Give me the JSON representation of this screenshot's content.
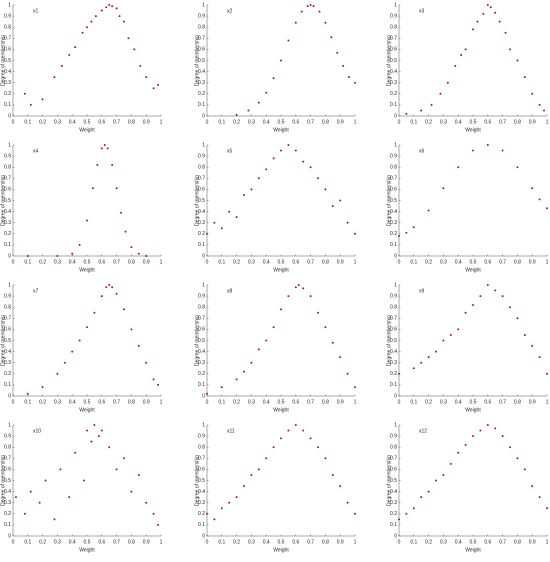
{
  "chart_data": [
    {
      "type": "scatter",
      "title": "x1",
      "xlabel": "Weight",
      "ylabel": "Degree of membership",
      "color": "#b3122e",
      "x": [
        0.08,
        0.12,
        0.2,
        0.28,
        0.33,
        0.38,
        0.42,
        0.47,
        0.5,
        0.53,
        0.56,
        0.6,
        0.63,
        0.65,
        0.67,
        0.7,
        0.72,
        0.75,
        0.78,
        0.82,
        0.86,
        0.9,
        0.95,
        0.98
      ],
      "y": [
        0.2,
        0.1,
        0.15,
        0.35,
        0.45,
        0.55,
        0.62,
        0.75,
        0.8,
        0.85,
        0.9,
        0.95,
        0.98,
        1,
        0.99,
        0.97,
        0.9,
        0.85,
        0.7,
        0.6,
        0.45,
        0.35,
        0.25,
        0.28
      ],
      "xlim": [
        0,
        1
      ],
      "ylim": [
        0,
        1
      ],
      "xticks": [
        0,
        0.1,
        0.2,
        0.3,
        0.4,
        0.5,
        0.6,
        0.7,
        0.8,
        0.9,
        1
      ],
      "yticks": [
        0,
        0.1,
        0.2,
        0.3,
        0.4,
        0.5,
        0.6,
        0.7,
        0.8,
        0.9,
        1
      ]
    },
    {
      "type": "scatter",
      "title": "x2",
      "xlabel": "Weight",
      "ylabel": "Degree of membership",
      "color": "#b3122e",
      "x": [
        0.2,
        0.28,
        0.35,
        0.4,
        0.45,
        0.5,
        0.55,
        0.6,
        0.64,
        0.68,
        0.7,
        0.72,
        0.76,
        0.8,
        0.84,
        0.88,
        0.92,
        0.96,
        1
      ],
      "y": [
        0.01,
        0.05,
        0.12,
        0.21,
        0.34,
        0.5,
        0.68,
        0.84,
        0.94,
        0.99,
        1,
        0.99,
        0.94,
        0.84,
        0.71,
        0.57,
        0.45,
        0.35,
        0.3
      ],
      "xlim": [
        0,
        1
      ],
      "ylim": [
        0,
        1
      ],
      "xticks": [
        0,
        0.1,
        0.2,
        0.3,
        0.4,
        0.5,
        0.6,
        0.7,
        0.8,
        0.9,
        1
      ],
      "yticks": [
        0,
        0.1,
        0.2,
        0.3,
        0.4,
        0.5,
        0.6,
        0.7,
        0.8,
        0.9,
        1
      ]
    },
    {
      "type": "scatter",
      "title": "x3",
      "xlabel": "Weight",
      "ylabel": "Degree of membership",
      "color": "#b3122e",
      "x": [
        0.05,
        0.15,
        0.22,
        0.28,
        0.33,
        0.38,
        0.42,
        0.45,
        0.5,
        0.53,
        0.57,
        0.6,
        0.62,
        0.65,
        0.68,
        0.72,
        0.75,
        0.8,
        0.85,
        0.9,
        0.95,
        0.98
      ],
      "y": [
        0.02,
        0.05,
        0.1,
        0.2,
        0.3,
        0.45,
        0.55,
        0.6,
        0.78,
        0.85,
        0.92,
        1,
        0.98,
        0.93,
        0.85,
        0.75,
        0.6,
        0.5,
        0.35,
        0.2,
        0.1,
        0.05
      ],
      "xlim": [
        0,
        1
      ],
      "ylim": [
        0,
        1
      ],
      "xticks": [
        0,
        0.1,
        0.2,
        0.3,
        0.4,
        0.5,
        0.6,
        0.7,
        0.8,
        0.9,
        1
      ],
      "yticks": [
        0,
        0.1,
        0.2,
        0.3,
        0.4,
        0.5,
        0.6,
        0.7,
        0.8,
        0.9,
        1
      ]
    },
    {
      "type": "scatter",
      "title": "x4",
      "xlabel": "Weight",
      "ylabel": "Degree of membership",
      "color": "#b3122e",
      "x": [
        0.1,
        0.3,
        0.4,
        0.45,
        0.5,
        0.54,
        0.57,
        0.6,
        0.62,
        0.64,
        0.67,
        0.7,
        0.73,
        0.76,
        0.8,
        0.85,
        0.9
      ],
      "y": [
        0,
        0,
        0.02,
        0.1,
        0.32,
        0.61,
        0.82,
        0.97,
        1,
        0.97,
        0.82,
        0.61,
        0.39,
        0.22,
        0.08,
        0.02,
        0
      ],
      "xlim": [
        0,
        1
      ],
      "ylim": [
        0,
        1
      ],
      "xticks": [
        0,
        0.1,
        0.2,
        0.3,
        0.4,
        0.5,
        0.6,
        0.7,
        0.8,
        0.9,
        1
      ],
      "yticks": [
        0,
        0.1,
        0.2,
        0.3,
        0.4,
        0.5,
        0.6,
        0.7,
        0.8,
        0.9,
        1
      ]
    },
    {
      "type": "scatter",
      "title": "x5",
      "xlabel": "Weight",
      "ylabel": "Degree of membership",
      "color": "#b3122e",
      "x": [
        0,
        0.05,
        0.1,
        0.15,
        0.2,
        0.25,
        0.3,
        0.35,
        0.4,
        0.45,
        0.5,
        0.55,
        0.6,
        0.65,
        0.7,
        0.75,
        0.8,
        0.85,
        0.9,
        0.95,
        1
      ],
      "y": [
        0.2,
        0.3,
        0.25,
        0.4,
        0.35,
        0.55,
        0.6,
        0.7,
        0.78,
        0.88,
        0.95,
        1,
        0.95,
        0.85,
        0.8,
        0.7,
        0.6,
        0.45,
        0.5,
        0.3,
        0.2
      ],
      "xlim": [
        0,
        1
      ],
      "ylim": [
        0,
        1
      ],
      "xticks": [
        0,
        0.1,
        0.2,
        0.3,
        0.4,
        0.5,
        0.6,
        0.7,
        0.8,
        0.9,
        1
      ],
      "yticks": [
        0,
        0.1,
        0.2,
        0.3,
        0.4,
        0.5,
        0.6,
        0.7,
        0.8,
        0.9,
        1
      ]
    },
    {
      "type": "scatter",
      "title": "x6",
      "xlabel": "Weight",
      "ylabel": "Degree of membership",
      "color": "#b3122e",
      "x": [
        0,
        0.05,
        0.1,
        0.2,
        0.3,
        0.4,
        0.5,
        0.6,
        0.7,
        0.8,
        0.9,
        0.95,
        1
      ],
      "y": [
        0.18,
        0.21,
        0.26,
        0.41,
        0.61,
        0.8,
        0.95,
        1,
        0.95,
        0.8,
        0.61,
        0.51,
        0.43
      ],
      "xlim": [
        0,
        1
      ],
      "ylim": [
        0,
        1
      ],
      "xticks": [
        0,
        0.1,
        0.2,
        0.3,
        0.4,
        0.5,
        0.6,
        0.7,
        0.8,
        0.9,
        1
      ],
      "yticks": [
        0,
        0.1,
        0.2,
        0.3,
        0.4,
        0.5,
        0.6,
        0.7,
        0.8,
        0.9,
        1
      ]
    },
    {
      "type": "scatter",
      "title": "x7",
      "xlabel": "Weight",
      "ylabel": "Degree of membership",
      "color": "#b3122e",
      "x": [
        0.1,
        0.2,
        0.3,
        0.35,
        0.4,
        0.45,
        0.5,
        0.55,
        0.6,
        0.63,
        0.65,
        0.67,
        0.7,
        0.75,
        0.8,
        0.85,
        0.9,
        0.95,
        0.98
      ],
      "y": [
        0.02,
        0.08,
        0.2,
        0.3,
        0.4,
        0.5,
        0.62,
        0.75,
        0.9,
        0.98,
        1,
        0.98,
        0.92,
        0.78,
        0.6,
        0.45,
        0.3,
        0.15,
        0.1
      ],
      "xlim": [
        0,
        1
      ],
      "ylim": [
        0,
        1
      ],
      "xticks": [
        0,
        0.1,
        0.2,
        0.3,
        0.4,
        0.5,
        0.6,
        0.7,
        0.8,
        0.9,
        1
      ],
      "yticks": [
        0,
        0.1,
        0.2,
        0.3,
        0.4,
        0.5,
        0.6,
        0.7,
        0.8,
        0.9,
        1
      ]
    },
    {
      "type": "scatter",
      "title": "x8",
      "xlabel": "Weight",
      "ylabel": "Degree of membership",
      "color": "#b3122e",
      "x": [
        0,
        0.1,
        0.2,
        0.25,
        0.3,
        0.35,
        0.4,
        0.45,
        0.5,
        0.55,
        0.6,
        0.62,
        0.65,
        0.7,
        0.75,
        0.8,
        0.85,
        0.9,
        0.95,
        1
      ],
      "y": [
        0.02,
        0.08,
        0.15,
        0.22,
        0.3,
        0.42,
        0.5,
        0.62,
        0.78,
        0.9,
        0.98,
        1,
        0.97,
        0.9,
        0.75,
        0.62,
        0.48,
        0.35,
        0.2,
        0.08
      ],
      "xlim": [
        0,
        1
      ],
      "ylim": [
        0,
        1
      ],
      "xticks": [
        0,
        0.1,
        0.2,
        0.3,
        0.4,
        0.5,
        0.6,
        0.7,
        0.8,
        0.9,
        1
      ],
      "yticks": [
        0,
        0.1,
        0.2,
        0.3,
        0.4,
        0.5,
        0.6,
        0.7,
        0.8,
        0.9,
        1
      ]
    },
    {
      "type": "scatter",
      "title": "x9",
      "xlabel": "Weight",
      "ylabel": "Degree of membership",
      "color": "#b3122e",
      "x": [
        0,
        0.1,
        0.15,
        0.2,
        0.25,
        0.3,
        0.35,
        0.4,
        0.45,
        0.5,
        0.55,
        0.6,
        0.65,
        0.7,
        0.75,
        0.8,
        0.85,
        0.9,
        0.95,
        1
      ],
      "y": [
        0.2,
        0.25,
        0.3,
        0.35,
        0.4,
        0.5,
        0.55,
        0.6,
        0.75,
        0.82,
        0.9,
        1,
        0.95,
        0.9,
        0.8,
        0.7,
        0.55,
        0.45,
        0.35,
        0.2
      ],
      "xlim": [
        0,
        1
      ],
      "ylim": [
        0,
        1
      ],
      "xticks": [
        0,
        0.1,
        0.2,
        0.3,
        0.4,
        0.5,
        0.6,
        0.7,
        0.8,
        0.9,
        1
      ],
      "yticks": [
        0,
        0.1,
        0.2,
        0.3,
        0.4,
        0.5,
        0.6,
        0.7,
        0.8,
        0.9,
        1
      ]
    },
    {
      "type": "scatter",
      "title": "x10",
      "xlabel": "Weight",
      "ylabel": "Degree of membership",
      "color": "#b3122e",
      "x": [
        0.02,
        0.08,
        0.12,
        0.18,
        0.22,
        0.28,
        0.32,
        0.38,
        0.42,
        0.48,
        0.5,
        0.53,
        0.55,
        0.58,
        0.6,
        0.65,
        0.7,
        0.75,
        0.8,
        0.85,
        0.9,
        0.95,
        0.98
      ],
      "y": [
        0.35,
        0.2,
        0.4,
        0.3,
        0.5,
        0.15,
        0.6,
        0.35,
        0.75,
        0.5,
        0.95,
        0.85,
        1,
        0.9,
        0.95,
        0.8,
        0.6,
        0.7,
        0.4,
        0.55,
        0.3,
        0.2,
        0.1
      ],
      "xlim": [
        0,
        1
      ],
      "ylim": [
        0,
        1
      ],
      "xticks": [
        0,
        0.1,
        0.2,
        0.3,
        0.4,
        0.5,
        0.6,
        0.7,
        0.8,
        0.9,
        1
      ],
      "yticks": [
        0,
        0.1,
        0.2,
        0.3,
        0.4,
        0.5,
        0.6,
        0.7,
        0.8,
        0.9,
        1
      ]
    },
    {
      "type": "scatter",
      "title": "x11",
      "xlabel": "Weight",
      "ylabel": "Degree of membership",
      "color": "#b3122e",
      "x": [
        0,
        0.05,
        0.1,
        0.15,
        0.2,
        0.25,
        0.3,
        0.35,
        0.4,
        0.45,
        0.5,
        0.55,
        0.6,
        0.65,
        0.7,
        0.75,
        0.8,
        0.85,
        0.9,
        0.95,
        1
      ],
      "y": [
        0.2,
        0.15,
        0.25,
        0.3,
        0.35,
        0.45,
        0.55,
        0.6,
        0.7,
        0.8,
        0.88,
        0.95,
        1,
        0.95,
        0.88,
        0.8,
        0.7,
        0.55,
        0.45,
        0.3,
        0.2
      ],
      "xlim": [
        0,
        1
      ],
      "ylim": [
        0,
        1
      ],
      "xticks": [
        0,
        0.1,
        0.2,
        0.3,
        0.4,
        0.5,
        0.6,
        0.7,
        0.8,
        0.9,
        1
      ],
      "yticks": [
        0,
        0.1,
        0.2,
        0.3,
        0.4,
        0.5,
        0.6,
        0.7,
        0.8,
        0.9,
        1
      ]
    },
    {
      "type": "scatter",
      "title": "x12",
      "xlabel": "Weight",
      "ylabel": "Degree of membership",
      "color": "#b3122e",
      "x": [
        0,
        0.05,
        0.1,
        0.15,
        0.2,
        0.25,
        0.3,
        0.35,
        0.4,
        0.45,
        0.5,
        0.55,
        0.6,
        0.65,
        0.7,
        0.75,
        0.8,
        0.85,
        0.9,
        0.95,
        1
      ],
      "y": [
        0.15,
        0.2,
        0.25,
        0.35,
        0.4,
        0.5,
        0.55,
        0.65,
        0.75,
        0.82,
        0.9,
        0.95,
        1,
        0.97,
        0.9,
        0.8,
        0.7,
        0.6,
        0.45,
        0.35,
        0.25
      ],
      "xlim": [
        0,
        1
      ],
      "ylim": [
        0,
        1
      ],
      "xticks": [
        0,
        0.1,
        0.2,
        0.3,
        0.4,
        0.5,
        0.6,
        0.7,
        0.8,
        0.9,
        1
      ],
      "yticks": [
        0,
        0.1,
        0.2,
        0.3,
        0.4,
        0.5,
        0.6,
        0.7,
        0.8,
        0.9,
        1
      ]
    }
  ]
}
